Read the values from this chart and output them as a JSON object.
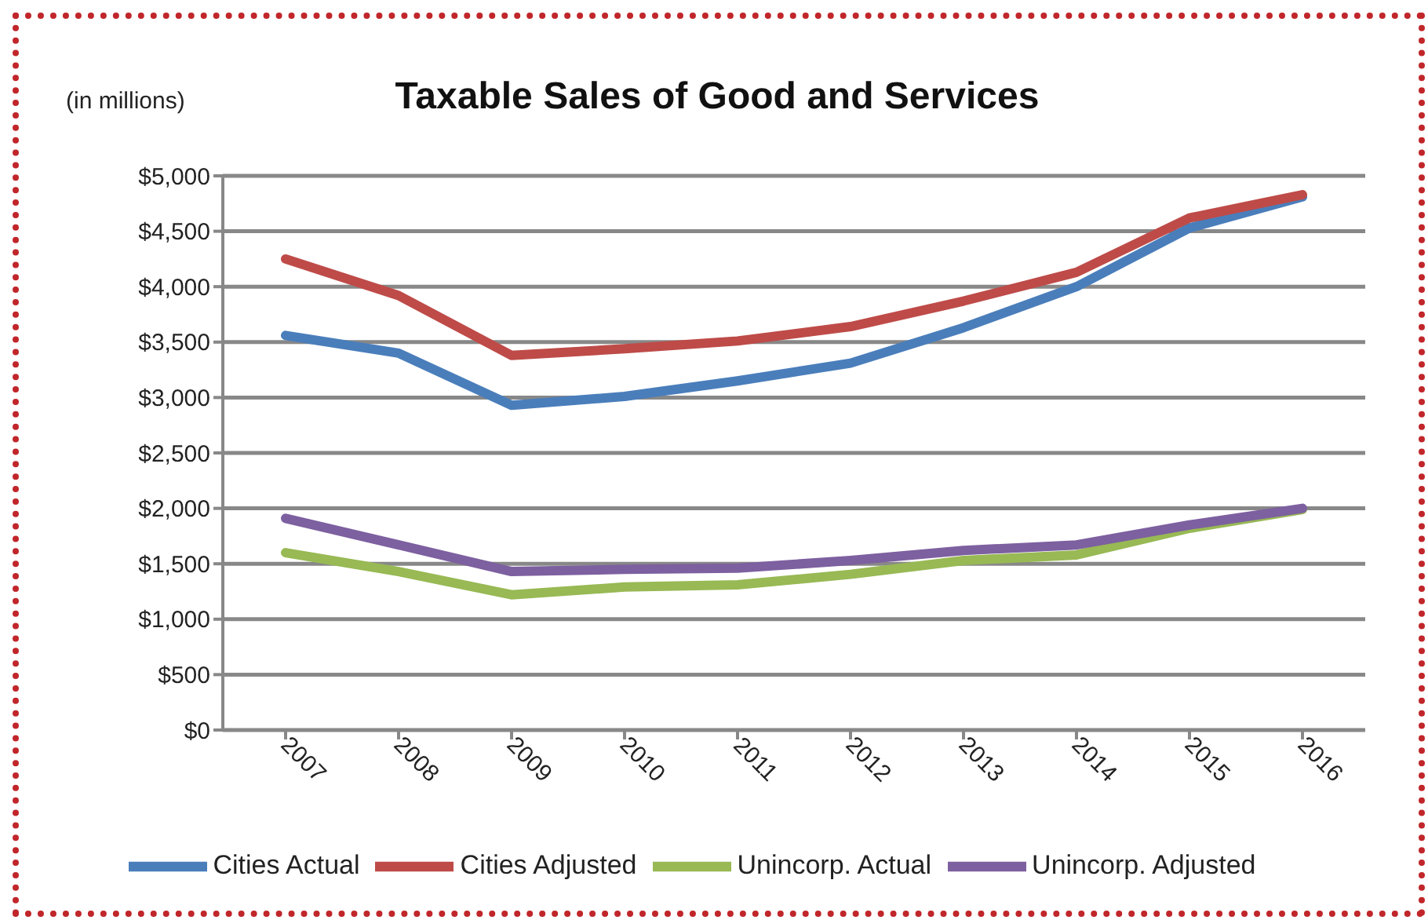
{
  "chart_data": {
    "type": "line",
    "title": "Taxable Sales of Good and Services",
    "annotations": [
      "(in millions)"
    ],
    "categories": [
      "2007",
      "2008",
      "2009",
      "2010",
      "2011",
      "2012",
      "2013",
      "2014",
      "2015",
      "2016"
    ],
    "series": [
      {
        "name": "Cities Actual",
        "color": "#4a7ebb",
        "values": [
          3560,
          3400,
          2930,
          3010,
          3150,
          3310,
          3630,
          4000,
          4530,
          4810
        ]
      },
      {
        "name": "Cities Adjusted",
        "color": "#be4b48",
        "values": [
          4250,
          3920,
          3380,
          3440,
          3510,
          3640,
          3870,
          4130,
          4620,
          4830
        ]
      },
      {
        "name": "Unincorp. Actual",
        "color": "#98b954",
        "values": [
          1600,
          1430,
          1220,
          1290,
          1310,
          1405,
          1530,
          1580,
          1820,
          1990
        ]
      },
      {
        "name": "Unincorp. Adjusted",
        "color": "#7d60a0",
        "values": [
          1910,
          1670,
          1430,
          1450,
          1460,
          1530,
          1620,
          1670,
          1850,
          2000
        ]
      }
    ],
    "ylim": [
      0,
      5000
    ],
    "yticks": [
      {
        "value": 0,
        "label": "$0"
      },
      {
        "value": 500,
        "label": "$500"
      },
      {
        "value": 1000,
        "label": "$1,000"
      },
      {
        "value": 1500,
        "label": "$1,500"
      },
      {
        "value": 2000,
        "label": "$2,000"
      },
      {
        "value": 2500,
        "label": "$2,500"
      },
      {
        "value": 3000,
        "label": "$3,000"
      },
      {
        "value": 3500,
        "label": "$3,500"
      },
      {
        "value": 4000,
        "label": "$4,000"
      },
      {
        "value": 4500,
        "label": "$4,500"
      },
      {
        "value": 5000,
        "label": "$5,000"
      }
    ],
    "grid": "y",
    "legend": "bottom",
    "marker": "none",
    "line_style": "solid"
  }
}
